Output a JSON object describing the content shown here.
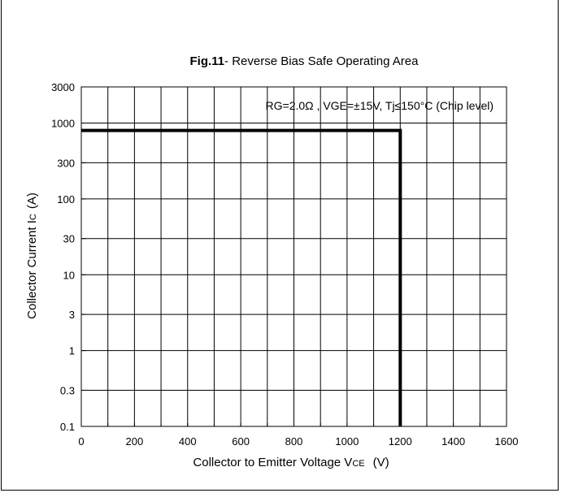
{
  "chart_data": {
    "type": "line",
    "title": {
      "bold": "Fig.11",
      "rest": "- Reverse Bias Safe Operating Area"
    },
    "xlabel": {
      "main": "Collector to Emitter Voltage  V",
      "sub": "CE",
      "unit": "(V)"
    },
    "ylabel": {
      "main": "Collector Current  I",
      "sub": "C",
      "unit": "(A)"
    },
    "conditions": "RG=2.0Ω , VGE=±15V, Tj≤150°C (Chip level)",
    "xlim": [
      0,
      1600
    ],
    "ylim": [
      0.1,
      3000
    ],
    "y_scale": "log",
    "grid": true,
    "x_ticks": [
      0,
      200,
      400,
      600,
      800,
      1000,
      1200,
      1400,
      1600
    ],
    "y_ticks": [
      {
        "value": 0.1,
        "label": "0.1"
      },
      {
        "value": 0.3,
        "label": "0.3"
      },
      {
        "value": 1,
        "label": "1"
      },
      {
        "value": 3,
        "label": "3"
      },
      {
        "value": 10,
        "label": "10"
      },
      {
        "value": 30,
        "label": "30"
      },
      {
        "value": 100,
        "label": "100"
      },
      {
        "value": 300,
        "label": "300"
      },
      {
        "value": 1000,
        "label": "1000"
      },
      {
        "value": 3000,
        "label": "3000"
      }
    ],
    "series": [
      {
        "points": [
          {
            "x": 0,
            "y": 800
          },
          {
            "x": 1200,
            "y": 800
          },
          {
            "x": 1200,
            "y": 0.1
          }
        ]
      }
    ]
  }
}
